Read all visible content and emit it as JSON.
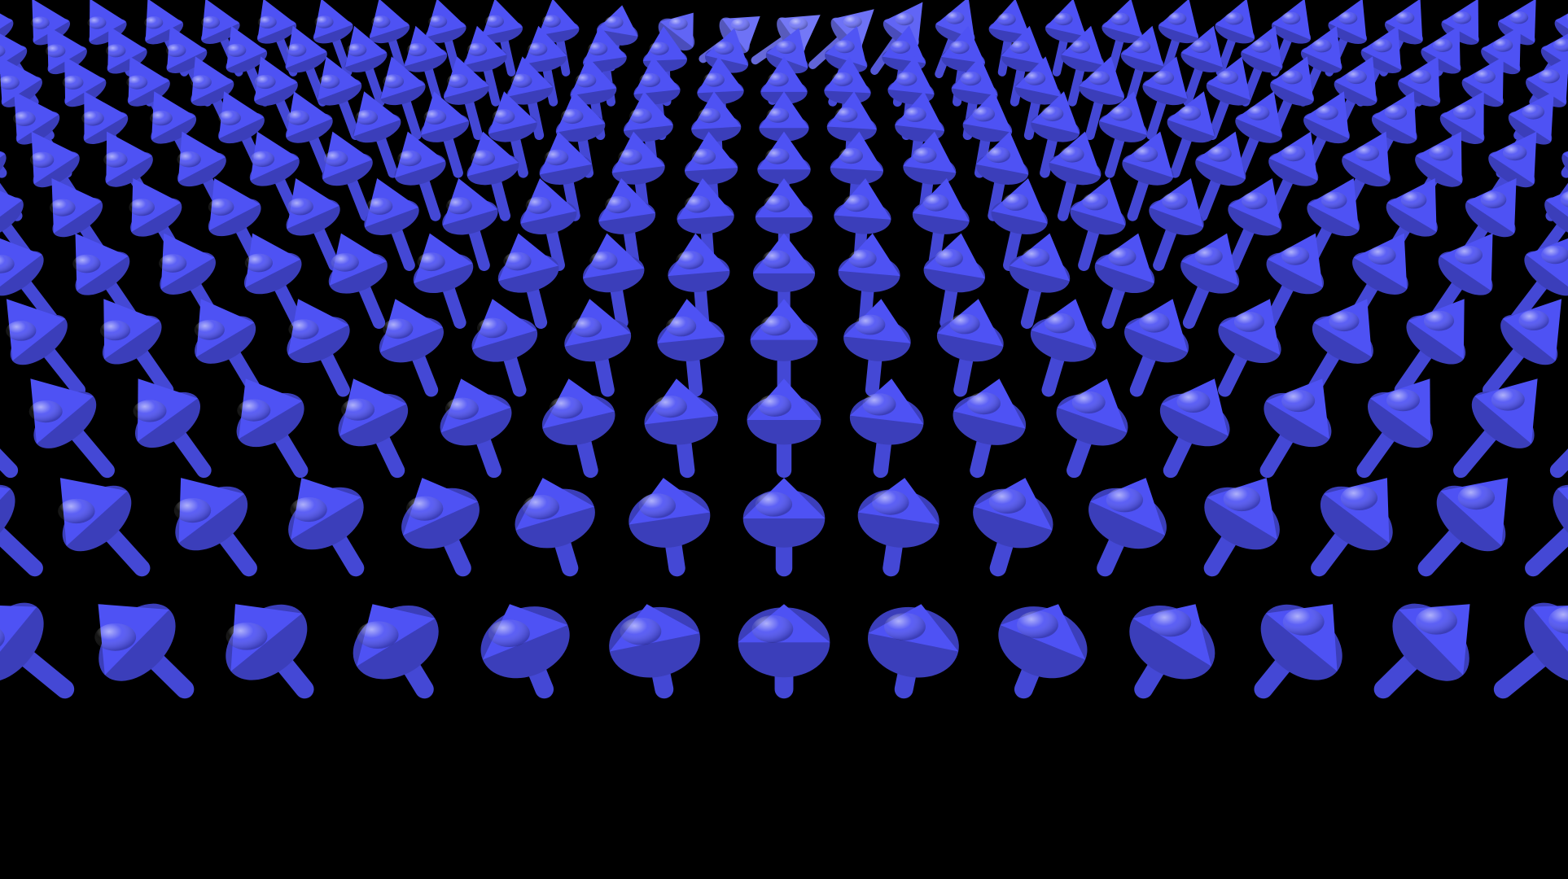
{
  "scene": {
    "subject": "skyrmion-spin-texture",
    "background_color": "#000000",
    "colors": {
      "spin_up": "#4a4ee8",
      "spin_up_highlight": "#9a9cff",
      "spin_in_plane": "#dcdff2",
      "spin_down": "#c0262e",
      "spin_down_highlight": "#ff8a8a"
    }
  }
}
